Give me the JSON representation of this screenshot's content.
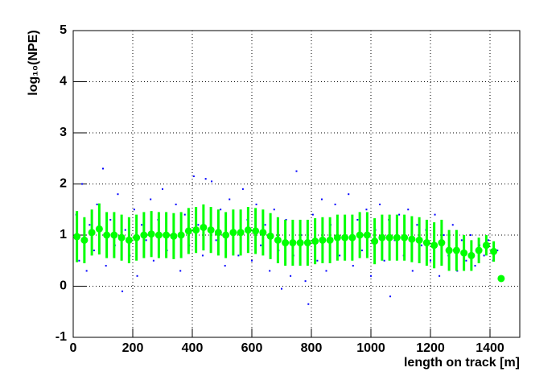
{
  "chart_data": {
    "type": "scatter",
    "xlabel": "length on track [m]",
    "ylabel": "log₁₀(NPE)",
    "xlim": [
      0,
      1500
    ],
    "ylim": [
      -1,
      5
    ],
    "xticks": [
      0,
      200,
      400,
      600,
      800,
      1000,
      1200,
      1400
    ],
    "yticks": [
      -1,
      0,
      1,
      2,
      3,
      4,
      5
    ],
    "grid": true,
    "series": [
      {
        "color": "#0000ff",
        "x": [
          10,
          20,
          30,
          45,
          55,
          70,
          80,
          100,
          110,
          125,
          140,
          150,
          165,
          175,
          190,
          205,
          215,
          230,
          245,
          260,
          270,
          285,
          300,
          315,
          330,
          345,
          360,
          375,
          390,
          405,
          420,
          435,
          445,
          465,
          480,
          495,
          510,
          525,
          540,
          555,
          570,
          585,
          600,
          615,
          630,
          645,
          660,
          675,
          690,
          700,
          715,
          730,
          740,
          750,
          765,
          780,
          790,
          805,
          820,
          835,
          850,
          865,
          880,
          895,
          910,
          925,
          940,
          955,
          970,
          985,
          1000,
          1015,
          1030,
          1045,
          1060,
          1065,
          1080,
          1095,
          1110,
          1125,
          1140,
          1155,
          1170,
          1185,
          1200,
          1215,
          1230,
          1245,
          1260,
          1275,
          1290,
          1305,
          1320,
          1335,
          1350,
          1365,
          1380,
          1395,
          1410,
          1425
        ],
        "values": [
          1.4,
          0.5,
          2.0,
          0.3,
          1.2,
          0.7,
          1.6,
          2.3,
          0.4,
          1.3,
          0.8,
          1.8,
          -0.1,
          1.1,
          0.6,
          1.5,
          0.2,
          1.2,
          0.9,
          1.7,
          0.5,
          1.3,
          1.9,
          0.7,
          1.0,
          1.6,
          0.3,
          1.4,
          0.8,
          2.15,
          1.2,
          0.6,
          2.1,
          2.05,
          0.9,
          1.5,
          0.4,
          1.7,
          1.1,
          0.6,
          1.9,
          1.3,
          0.5,
          1.6,
          0.8,
          1.2,
          0.3,
          1.5,
          0.7,
          -0.05,
          1.3,
          0.2,
          0.6,
          2.25,
          1.0,
          0.1,
          -0.35,
          1.4,
          0.5,
          1.7,
          0.3,
          1.2,
          1.6,
          0.6,
          1.0,
          1.8,
          0.4,
          1.3,
          0.7,
          1.5,
          0.2,
          1.1,
          1.6,
          0.5,
          1.3,
          -0.2,
          0.9,
          1.4,
          0.6,
          1.5,
          0.3,
          1.2,
          0.8,
          1.1,
          0.5,
          1.4,
          0.2,
          1.0,
          0.6,
          1.2,
          0.3,
          0.9,
          0.5,
          1.0,
          0.4,
          0.8,
          0.6,
          0.9,
          0.5,
          0.7
        ]
      },
      {
        "color": "#00ff00",
        "x": [
          12.5,
          37.5,
          62.5,
          87.5,
          112.5,
          137.5,
          162.5,
          187.5,
          212.5,
          237.5,
          262.5,
          287.5,
          312.5,
          337.5,
          362.5,
          387.5,
          412.5,
          437.5,
          462.5,
          487.5,
          512.5,
          537.5,
          562.5,
          587.5,
          612.5,
          637.5,
          662.5,
          687.5,
          712.5,
          737.5,
          762.5,
          787.5,
          812.5,
          837.5,
          862.5,
          887.5,
          912.5,
          937.5,
          962.5,
          987.5,
          1012.5,
          1037.5,
          1062.5,
          1087.5,
          1112.5,
          1137.5,
          1162.5,
          1187.5,
          1212.5,
          1237.5,
          1262.5,
          1287.5,
          1312.5,
          1337.5,
          1362.5,
          1387.5,
          1412.5,
          1437.5
        ],
        "values": [
          0.97,
          0.9,
          1.05,
          1.12,
          1.0,
          1.0,
          0.95,
          0.9,
          0.95,
          1.0,
          1.02,
          1.0,
          1.0,
          0.98,
          1.0,
          1.08,
          1.1,
          1.15,
          1.1,
          1.05,
          1.0,
          1.05,
          1.05,
          1.1,
          1.08,
          1.05,
          0.98,
          0.9,
          0.85,
          0.85,
          0.85,
          0.85,
          0.88,
          0.9,
          0.9,
          0.95,
          0.95,
          0.95,
          1.0,
          1.0,
          0.88,
          0.95,
          0.95,
          0.95,
          0.95,
          0.92,
          0.9,
          0.85,
          0.8,
          0.85,
          0.7,
          0.7,
          0.65,
          0.6,
          0.7,
          0.8,
          0.68,
          0.15
        ],
        "errors": [
          0.5,
          0.45,
          0.45,
          0.5,
          0.45,
          0.45,
          0.45,
          0.45,
          0.45,
          0.45,
          0.45,
          0.45,
          0.45,
          0.45,
          0.45,
          0.45,
          0.45,
          0.45,
          0.45,
          0.45,
          0.45,
          0.45,
          0.45,
          0.45,
          0.45,
          0.45,
          0.45,
          0.45,
          0.45,
          0.45,
          0.45,
          0.45,
          0.45,
          0.45,
          0.45,
          0.45,
          0.45,
          0.45,
          0.45,
          0.45,
          0.45,
          0.45,
          0.45,
          0.45,
          0.45,
          0.45,
          0.45,
          0.45,
          0.45,
          0.45,
          0.4,
          0.4,
          0.35,
          0.3,
          0.25,
          0.2,
          0.2,
          0.03
        ]
      }
    ]
  }
}
